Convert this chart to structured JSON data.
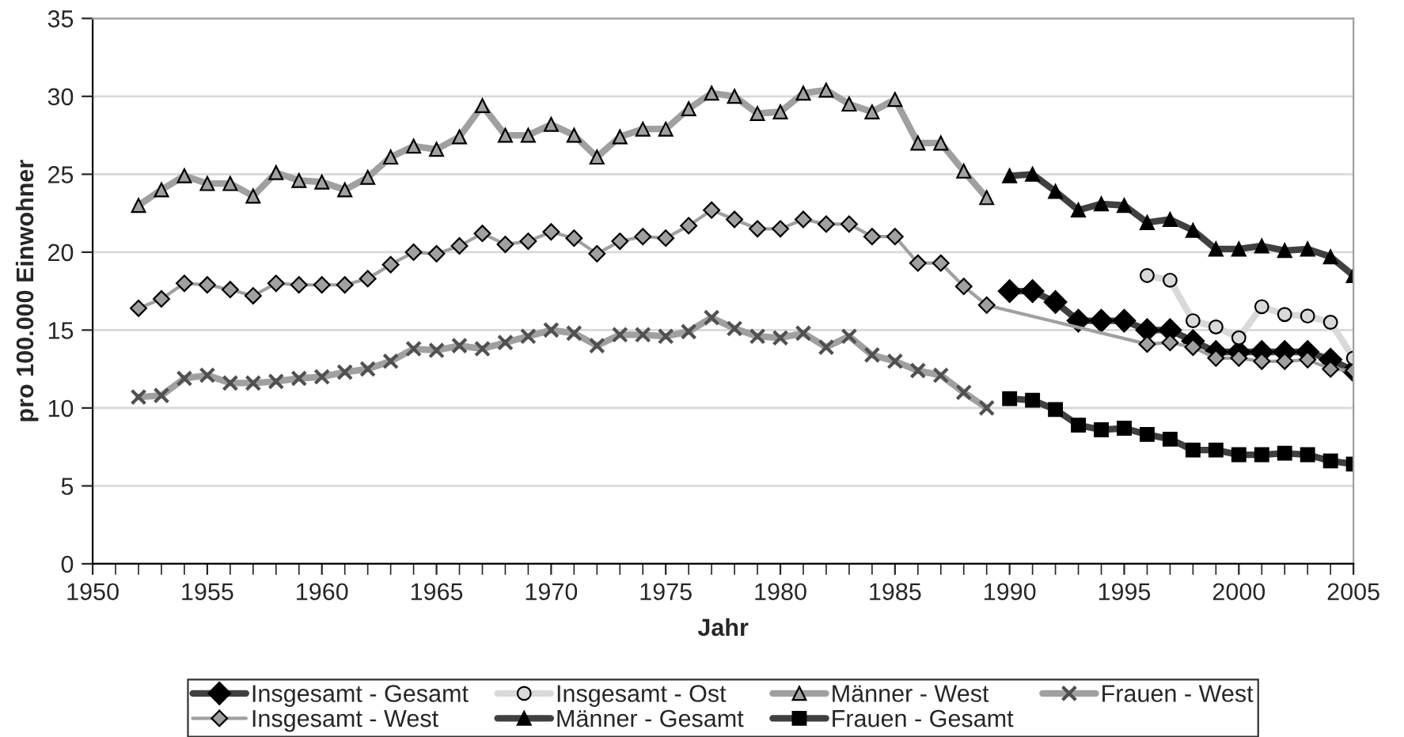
{
  "chart_data": {
    "type": "line",
    "xlabel": "Jahr",
    "ylabel": "pro 100.000 Einwohner",
    "xlim": [
      1950,
      2005
    ],
    "xticks": [
      1950,
      1955,
      1960,
      1965,
      1970,
      1975,
      1980,
      1985,
      1990,
      1995,
      2000,
      2005
    ],
    "ylim": [
      0,
      35
    ],
    "yticks": [
      0,
      5,
      10,
      15,
      20,
      25,
      30,
      35
    ],
    "grid": "y",
    "legend": "bottom",
    "series": [
      {
        "name": "Insgesamt - Gesamt",
        "color": "#000000",
        "marker": "diamond",
        "x": [
          1990,
          1991,
          1992,
          1993,
          1994,
          1995,
          1996,
          1997,
          1998,
          1999,
          2000,
          2001,
          2002,
          2003,
          2004,
          2005
        ],
        "values": [
          17.5,
          17.5,
          16.8,
          15.6,
          15.6,
          15.6,
          15.0,
          15.0,
          14.3,
          13.6,
          13.6,
          13.6,
          13.6,
          13.6,
          13.1,
          12.4
        ]
      },
      {
        "name": "Insgesamt - West",
        "color": "#a0a0a0",
        "marker": "diamond",
        "x": [
          1952,
          1953,
          1954,
          1955,
          1956,
          1957,
          1958,
          1959,
          1960,
          1961,
          1962,
          1963,
          1964,
          1965,
          1966,
          1967,
          1968,
          1969,
          1970,
          1971,
          1972,
          1973,
          1974,
          1975,
          1976,
          1977,
          1978,
          1979,
          1980,
          1981,
          1982,
          1983,
          1984,
          1985,
          1986,
          1987,
          1988,
          1989,
          1996,
          1997,
          1998,
          1999,
          2000,
          2001,
          2002,
          2003,
          2004,
          2005
        ],
        "values": [
          16.4,
          17.0,
          18.0,
          17.9,
          17.6,
          17.2,
          18.0,
          17.9,
          17.9,
          17.9,
          18.3,
          19.2,
          20.0,
          19.9,
          20.4,
          21.2,
          20.5,
          20.7,
          21.3,
          20.9,
          19.9,
          20.7,
          21.0,
          20.9,
          21.7,
          22.7,
          22.1,
          21.5,
          21.5,
          22.1,
          21.8,
          21.8,
          21.0,
          21.0,
          19.3,
          19.3,
          17.8,
          16.6,
          14.1,
          14.2,
          13.9,
          13.2,
          13.2,
          13.0,
          13.0,
          13.1,
          12.5,
          12.4
        ]
      },
      {
        "name": "Insgesamt - Ost",
        "color": "#d9d9d9",
        "marker": "circle",
        "x": [
          1996,
          1997,
          1998,
          1999,
          2000,
          2001,
          2002,
          2003,
          2004,
          2005
        ],
        "values": [
          18.5,
          18.2,
          15.6,
          15.2,
          14.5,
          16.5,
          16.0,
          15.9,
          15.5,
          13.2
        ]
      },
      {
        "name": "Männer - Gesamt",
        "color": "#000000",
        "marker": "triangle",
        "x": [
          1990,
          1991,
          1992,
          1993,
          1994,
          1995,
          1996,
          1997,
          1998,
          1999,
          2000,
          2001,
          2002,
          2003,
          2004,
          2005
        ],
        "values": [
          24.9,
          25.0,
          23.9,
          22.7,
          23.1,
          23.0,
          21.9,
          22.1,
          21.4,
          20.2,
          20.2,
          20.4,
          20.1,
          20.2,
          19.7,
          18.5
        ]
      },
      {
        "name": "Männer - West",
        "color": "#a0a0a0",
        "marker": "triangle",
        "x": [
          1952,
          1953,
          1954,
          1955,
          1956,
          1957,
          1958,
          1959,
          1960,
          1961,
          1962,
          1963,
          1964,
          1965,
          1966,
          1967,
          1968,
          1969,
          1970,
          1971,
          1972,
          1973,
          1974,
          1975,
          1976,
          1977,
          1978,
          1979,
          1980,
          1981,
          1982,
          1983,
          1984,
          1985,
          1986,
          1987,
          1988,
          1989
        ],
        "values": [
          23.0,
          24.0,
          24.9,
          24.4,
          24.4,
          23.6,
          25.1,
          24.6,
          24.5,
          24.0,
          24.8,
          26.1,
          26.8,
          26.6,
          27.4,
          29.4,
          27.5,
          27.5,
          28.2,
          27.5,
          26.1,
          27.4,
          27.9,
          27.9,
          29.2,
          30.2,
          30.0,
          28.9,
          29.0,
          30.2,
          30.4,
          29.5,
          29.0,
          29.8,
          27.0,
          27.0,
          25.2,
          23.5
        ]
      },
      {
        "name": "Frauen - Gesamt",
        "color": "#000000",
        "marker": "square",
        "x": [
          1990,
          1991,
          1992,
          1993,
          1994,
          1995,
          1996,
          1997,
          1998,
          1999,
          2000,
          2001,
          2002,
          2003,
          2004,
          2005
        ],
        "values": [
          10.6,
          10.5,
          9.9,
          8.9,
          8.6,
          8.7,
          8.3,
          8.0,
          7.3,
          7.3,
          7.0,
          7.0,
          7.1,
          7.0,
          6.6,
          6.4
        ]
      },
      {
        "name": "Frauen - West",
        "color": "#a0a0a0",
        "marker": "cross",
        "x": [
          1952,
          1953,
          1954,
          1955,
          1956,
          1957,
          1958,
          1959,
          1960,
          1961,
          1962,
          1963,
          1964,
          1965,
          1966,
          1967,
          1968,
          1969,
          1970,
          1971,
          1972,
          1973,
          1974,
          1975,
          1976,
          1977,
          1978,
          1979,
          1980,
          1981,
          1982,
          1983,
          1984,
          1985,
          1986,
          1987,
          1988,
          1989
        ],
        "values": [
          10.7,
          10.8,
          11.9,
          12.1,
          11.6,
          11.6,
          11.7,
          11.9,
          12.0,
          12.3,
          12.5,
          13.0,
          13.8,
          13.7,
          14.0,
          13.8,
          14.2,
          14.6,
          15.0,
          14.8,
          14.0,
          14.7,
          14.7,
          14.6,
          14.9,
          15.8,
          15.1,
          14.6,
          14.5,
          14.8,
          13.9,
          14.6,
          13.4,
          13.0,
          12.4,
          12.1,
          11.0,
          10.0
        ]
      }
    ]
  }
}
